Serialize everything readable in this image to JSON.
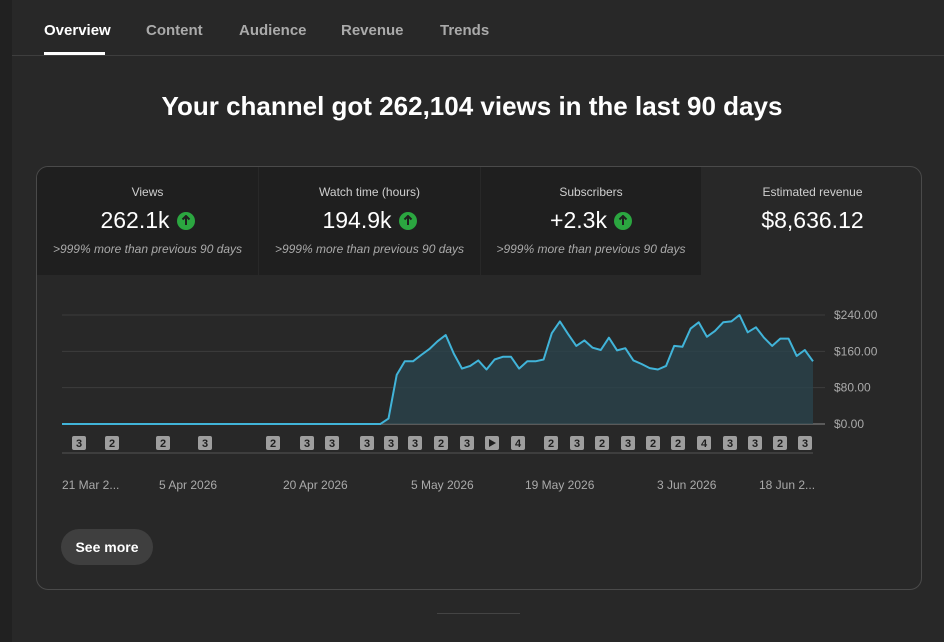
{
  "tabs": [
    {
      "label": "Overview",
      "active": true
    },
    {
      "label": "Content"
    },
    {
      "label": "Audience"
    },
    {
      "label": "Revenue"
    },
    {
      "label": "Trends"
    }
  ],
  "headline": "Your channel got 262,104 views in the last 90 days",
  "metrics": [
    {
      "label": "Views",
      "value": "262.1k",
      "note": ">999% more than previous 90 days",
      "trend": "up"
    },
    {
      "label": "Watch time (hours)",
      "value": "194.9k",
      "note": ">999% more than previous 90 days",
      "trend": "up"
    },
    {
      "label": "Subscribers",
      "value": "+2.3k",
      "note": ">999% more than previous 90 days",
      "trend": "up"
    },
    {
      "label": "Estimated revenue",
      "value": "$8,636.12"
    }
  ],
  "see_more_label": "See more",
  "chart_data": {
    "type": "area",
    "ylabel_format": "$",
    "y_ticks": [
      "$0.00",
      "$80.00",
      "$160.00",
      "$240.00"
    ],
    "ylim": [
      0,
      240
    ],
    "x_ticks": [
      "21 Mar 2...",
      "5 Apr 2026",
      "20 Apr 2026",
      "5 May 2026",
      "19 May 2026",
      "3 Jun 2026",
      "18 Jun 2..."
    ],
    "color": "#41b4d9",
    "values": [
      0,
      0,
      0,
      0,
      0,
      0,
      0,
      0,
      0,
      0,
      0,
      0,
      0,
      0,
      0,
      0,
      0,
      0,
      0,
      0,
      0,
      0,
      0,
      0,
      0,
      0,
      0,
      0,
      0,
      0,
      0,
      0,
      0,
      0,
      0,
      0,
      0,
      0,
      0,
      0,
      12,
      108,
      138,
      138,
      152,
      165,
      182,
      196,
      155,
      122,
      128,
      140,
      120,
      142,
      148,
      148,
      122,
      138,
      138,
      142,
      200,
      226,
      198,
      172,
      184,
      168,
      163,
      190,
      162,
      167,
      140,
      132,
      123,
      120,
      128,
      172,
      170,
      210,
      224,
      192,
      205,
      224,
      226,
      240,
      202,
      213,
      190,
      172,
      188,
      188,
      150,
      163,
      138
    ],
    "markers": [
      {
        "label": "3"
      },
      {
        "label": "2"
      },
      {
        "label": "2"
      },
      {
        "label": "3"
      },
      {
        "label": "2"
      },
      {
        "label": "3"
      },
      {
        "label": "3"
      },
      {
        "label": "3"
      },
      {
        "label": "3"
      },
      {
        "label": "3"
      },
      {
        "label": "2"
      },
      {
        "label": "3"
      },
      {
        "label": "play"
      },
      {
        "label": "4"
      },
      {
        "label": "2"
      },
      {
        "label": "3"
      },
      {
        "label": "2"
      },
      {
        "label": "3"
      },
      {
        "label": "2"
      },
      {
        "label": "2"
      },
      {
        "label": "4"
      },
      {
        "label": "3"
      },
      {
        "label": "3"
      },
      {
        "label": "2"
      },
      {
        "label": "3"
      }
    ]
  }
}
